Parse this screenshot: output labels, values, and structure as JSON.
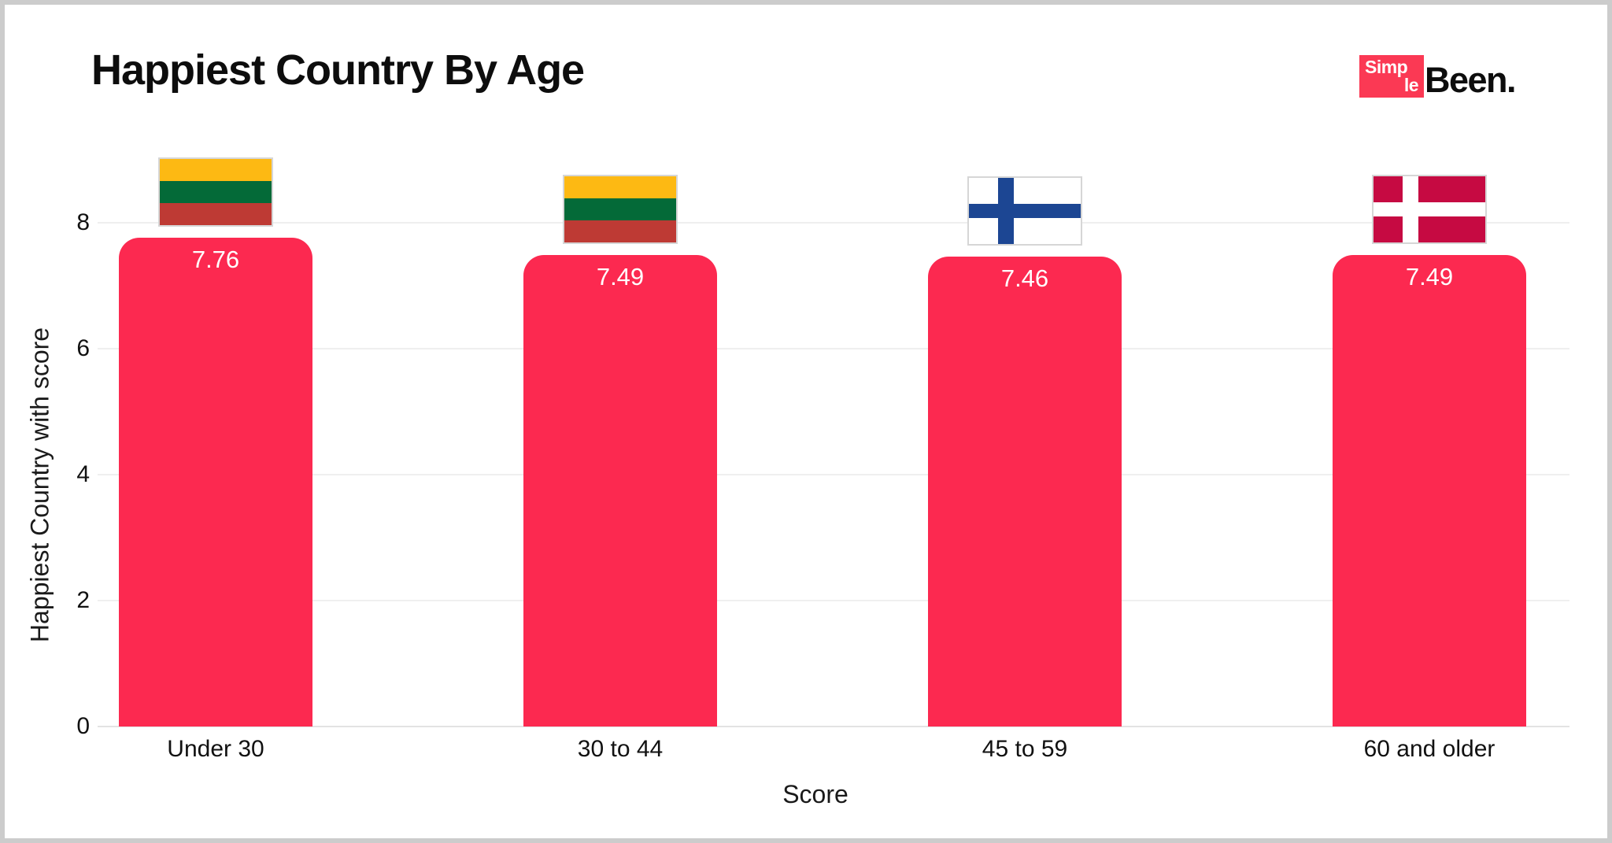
{
  "page": {
    "background": "#ffffff",
    "border_color": "#cccccc"
  },
  "header": {
    "title": "Happiest Country By Age",
    "logo": {
      "line1": "Simp",
      "line2": "le",
      "suffix": "Been.",
      "box_color": "#fb3954",
      "box_text_color": "#ffffff",
      "suffix_color": "#0d0d0d"
    }
  },
  "chart_data": {
    "type": "bar",
    "title": "Happiest Country By Age",
    "xlabel": "Score",
    "ylabel": "Happiest Country with score",
    "ylim": [
      0,
      9
    ],
    "yticks": [
      0,
      2,
      4,
      6,
      8
    ],
    "grid": true,
    "legend": "none",
    "bar_color": "#fc2950",
    "value_label_color": "#ffffff",
    "categories": [
      "Under 30",
      "30 to 44",
      "45 to 59",
      "60 and older"
    ],
    "values": [
      7.76,
      7.49,
      7.46,
      7.49
    ],
    "value_labels": [
      "7.76",
      "7.49",
      "7.46",
      "7.49"
    ],
    "flags": [
      "lithuania",
      "lithuania",
      "finland",
      "denmark"
    ],
    "flag_colors": {
      "lithuania": {
        "stripes": [
          "#fdb913",
          "#046a38",
          "#be3a34"
        ]
      },
      "finland": {
        "background": "#ffffff",
        "cross": "#1c4693"
      },
      "denmark": {
        "background": "#c60a42",
        "cross": "#ffffff"
      }
    }
  }
}
